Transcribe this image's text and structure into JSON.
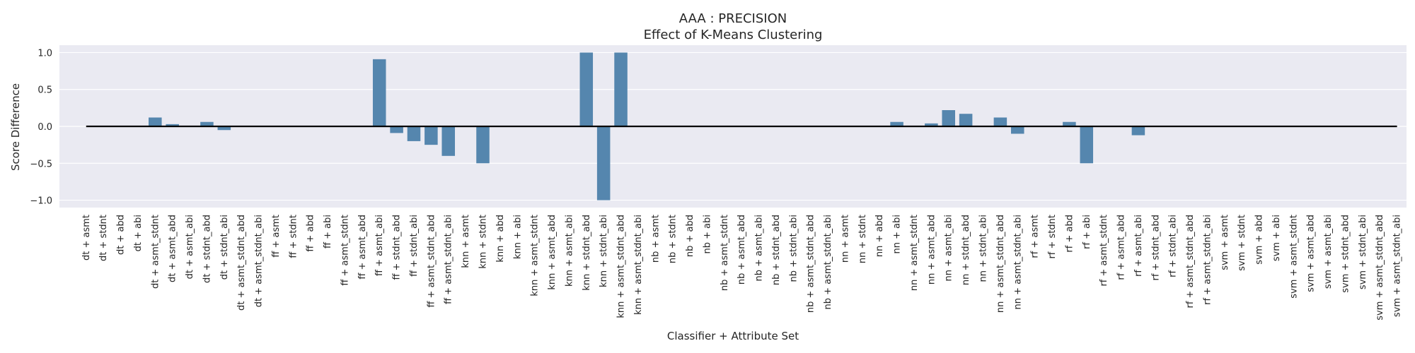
{
  "chart_data": {
    "type": "bar",
    "title": "AAA : PRECISION",
    "subtitle": "Effect of K-Means Clustering",
    "xlabel": "Classifier + Attribute Set",
    "ylabel": "Score Difference",
    "ylim": [
      -1.1,
      1.1
    ],
    "yticks": [
      -1.0,
      -0.5,
      0.0,
      0.5,
      1.0
    ],
    "ytick_labels": [
      "−1.0",
      "−0.5",
      "0.0",
      "0.5",
      "1.0"
    ],
    "grid": true,
    "bar_color": "#5586ae",
    "background_color": "#eaeaf2",
    "zero_line_color": "#000000",
    "categories": [
      "dt + asmt",
      "dt + stdnt",
      "dt + abd",
      "dt + abi",
      "dt + asmt_stdnt",
      "dt + asmt_abd",
      "dt + asmt_abi",
      "dt + stdnt_abd",
      "dt + stdnt_abi",
      "dt + asmt_stdnt_abd",
      "dt + asmt_stdnt_abi",
      "ff + asmt",
      "ff + stdnt",
      "ff + abd",
      "ff + abi",
      "ff + asmt_stdnt",
      "ff + asmt_abd",
      "ff + asmt_abi",
      "ff + stdnt_abd",
      "ff + stdnt_abi",
      "ff + asmt_stdnt_abd",
      "ff + asmt_stdnt_abi",
      "knn + asmt",
      "knn + stdnt",
      "knn + abd",
      "knn + abi",
      "knn + asmt_stdnt",
      "knn + asmt_abd",
      "knn + asmt_abi",
      "knn + stdnt_abd",
      "knn + stdnt_abi",
      "knn + asmt_stdnt_abd",
      "knn + asmt_stdnt_abi",
      "nb + asmt",
      "nb + stdnt",
      "nb + abd",
      "nb + abi",
      "nb + asmt_stdnt",
      "nb + asmt_abd",
      "nb + asmt_abi",
      "nb + stdnt_abd",
      "nb + stdnt_abi",
      "nb + asmt_stdnt_abd",
      "nb + asmt_stdnt_abi",
      "nn + asmt",
      "nn + stdnt",
      "nn + abd",
      "nn + abi",
      "nn + asmt_stdnt",
      "nn + asmt_abd",
      "nn + asmt_abi",
      "nn + stdnt_abd",
      "nn + stdnt_abi",
      "nn + asmt_stdnt_abd",
      "nn + asmt_stdnt_abi",
      "rf + asmt",
      "rf + stdnt",
      "rf + abd",
      "rf + abi",
      "rf + asmt_stdnt",
      "rf + asmt_abd",
      "rf + asmt_abi",
      "rf + stdnt_abd",
      "rf + stdnt_abi",
      "rf + asmt_stdnt_abd",
      "rf + asmt_stdnt_abi",
      "svm + asmt",
      "svm + stdnt",
      "svm + abd",
      "svm + abi",
      "svm + asmt_stdnt",
      "svm + asmt_abd",
      "svm + asmt_abi",
      "svm + stdnt_abd",
      "svm + stdnt_abi",
      "svm + asmt_stdnt_abd",
      "svm + asmt_stdnt_abi"
    ],
    "values": [
      0,
      0,
      0,
      0,
      0.12,
      0.03,
      0,
      0.06,
      -0.05,
      0,
      0,
      0,
      0,
      0,
      0,
      0,
      0,
      0.91,
      -0.09,
      -0.2,
      -0.25,
      -0.4,
      0,
      -0.5,
      0,
      0,
      0,
      0,
      0,
      1.0,
      -1.0,
      1.0,
      0,
      0,
      0,
      0,
      0,
      0,
      0,
      0,
      0,
      0,
      0,
      0,
      0,
      0,
      0,
      0.06,
      0,
      0.04,
      0.22,
      0.17,
      0,
      0.12,
      -0.1,
      0,
      0,
      0.06,
      -0.5,
      0,
      0,
      -0.12,
      0,
      0,
      0,
      0,
      0,
      0,
      0,
      0,
      0,
      0,
      0,
      0,
      0,
      0,
      0
    ]
  }
}
